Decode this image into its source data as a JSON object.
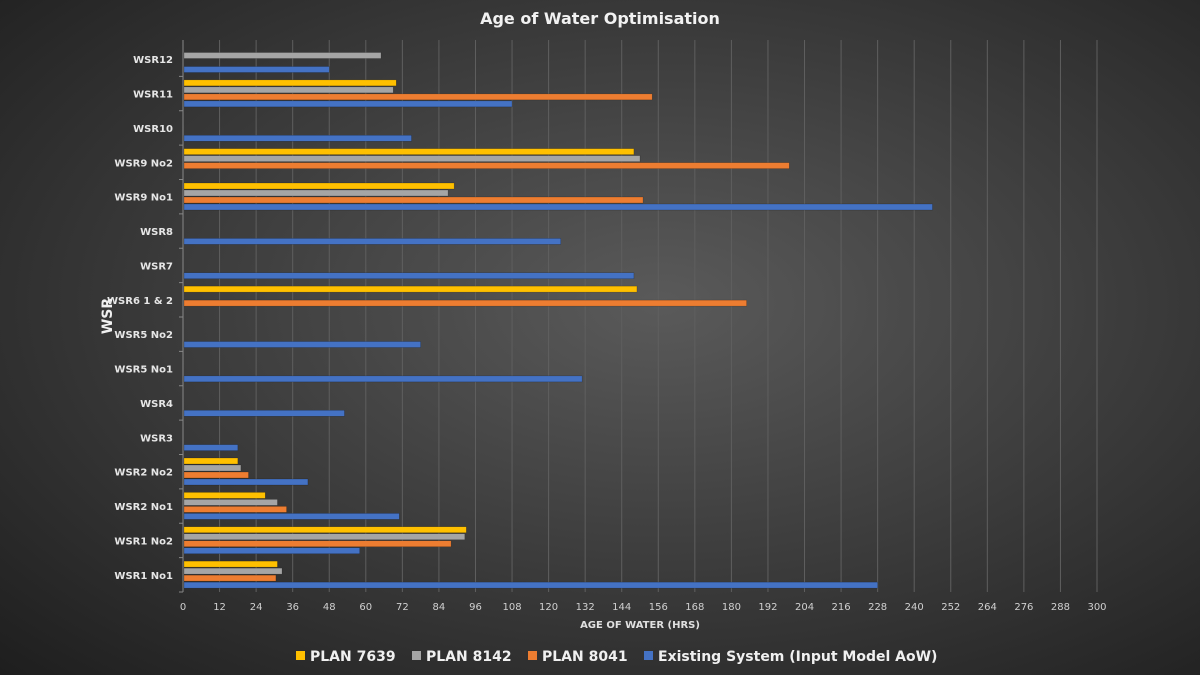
{
  "chart_data": {
    "type": "bar",
    "orientation": "horizontal",
    "title": "Age of Water Optimisation",
    "xlabel": "AGE OF WATER (HRS)",
    "ylabel": "WSR",
    "xlim": [
      0,
      300
    ],
    "xticks": [
      0,
      12,
      24,
      36,
      48,
      60,
      72,
      84,
      96,
      108,
      120,
      132,
      144,
      156,
      168,
      180,
      192,
      204,
      216,
      228,
      240,
      252,
      264,
      276,
      288,
      300
    ],
    "grid": "vertical",
    "legend_position": "bottom",
    "categories": [
      "WSR1 No1",
      "WSR1 No2",
      "WSR2 No1",
      "WSR2 No2",
      "WSR3",
      "WSR4",
      "WSR5 No1",
      "WSR5 No2",
      "WSR6 1 & 2",
      "WSR7",
      "WSR8",
      "WSR9 No1",
      "WSR9 No2",
      "WSR10",
      "WSR11",
      "WSR12"
    ],
    "series": [
      {
        "name": "PLAN 7639",
        "color": "#ffc000",
        "values": [
          31,
          93,
          27,
          18,
          null,
          null,
          null,
          null,
          149,
          null,
          null,
          89,
          148,
          null,
          70,
          null
        ]
      },
      {
        "name": "PLAN 8142",
        "color": "#a5a5a5",
        "values": [
          32.5,
          92.5,
          31,
          19,
          null,
          null,
          null,
          null,
          null,
          null,
          null,
          87,
          150,
          null,
          69,
          65
        ]
      },
      {
        "name": "PLAN 8041",
        "color": "#ed7d31",
        "values": [
          30.5,
          88,
          34,
          21.5,
          null,
          null,
          null,
          null,
          185,
          null,
          null,
          151,
          199,
          null,
          154,
          null
        ]
      },
      {
        "name": "Existing System (Input Model AoW)",
        "color": "#4472c4",
        "values": [
          228,
          58,
          71,
          41,
          18,
          53,
          131,
          78,
          null,
          148,
          124,
          246,
          null,
          75,
          108,
          48
        ]
      }
    ]
  }
}
